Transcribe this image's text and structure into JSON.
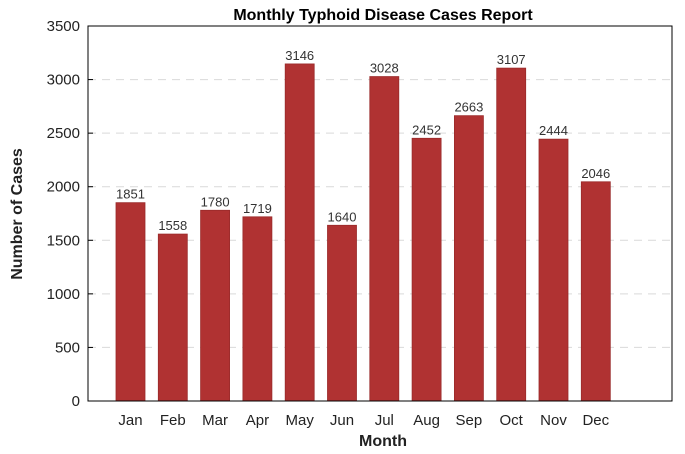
{
  "chart_data": {
    "type": "bar",
    "title": "Monthly Typhoid Disease Cases Report",
    "xlabel": "Month",
    "ylabel": "Number of Cases",
    "categories": [
      "Jan",
      "Feb",
      "Mar",
      "Apr",
      "May",
      "Jun",
      "Jul",
      "Aug",
      "Sep",
      "Oct",
      "Nov",
      "Dec"
    ],
    "values": [
      1851,
      1558,
      1780,
      1719,
      3146,
      1640,
      3028,
      2452,
      2663,
      3107,
      2444,
      2046
    ],
    "data_labels": [
      "1851",
      "1558",
      "1780",
      "1719",
      "3146",
      "1640",
      "3028",
      "2452",
      "2663",
      "3107",
      "2444",
      "2046"
    ],
    "ylim": [
      0,
      3500
    ],
    "yticks": [
      0,
      500,
      1000,
      1500,
      2000,
      2500,
      3000,
      3500
    ],
    "ytick_labels": [
      "0",
      "500",
      "1000",
      "1500",
      "2000",
      "2500",
      "3000",
      "3500"
    ],
    "grid": "y-dashed",
    "bar_color": "#b03232",
    "bar_edge_color": "#9a2a2a",
    "grid_color": "#d9d9d9"
  }
}
